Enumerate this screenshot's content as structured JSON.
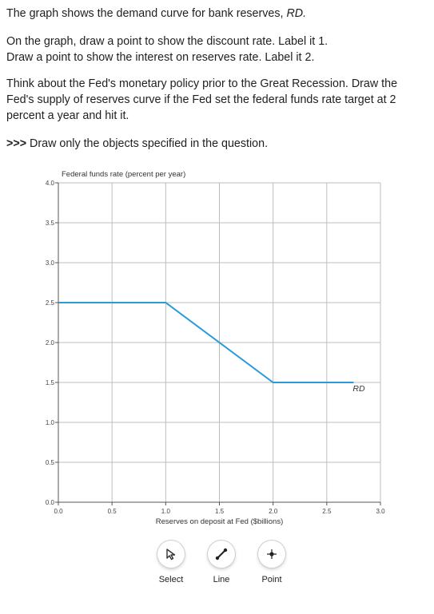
{
  "question": {
    "p1": {
      "text": "The graph shows the demand curve for bank reserves, ",
      "em": "RD."
    },
    "p2_line1": "On the graph, draw a point to show the discount rate. Label it 1.",
    "p2_line2": "Draw a point to show the interest on reserves rate. Label it 2.",
    "p3": "Think about the Fed's monetary policy prior to the Great Recession. Draw the Fed's supply of reserves curve if the Fed set the federal funds rate target at 2 percent a year and hit it.",
    "p4_prefix": ">>>",
    "p4_text": " Draw only the objects specified in the question."
  },
  "chart_data": {
    "type": "line",
    "ylabel": "Federal funds rate (percent per year)",
    "xlabel": "Reserves on deposit at Fed ($billions)",
    "xlim": [
      0,
      3.0
    ],
    "ylim": [
      0,
      4.0
    ],
    "x_ticks": [
      "0.0",
      "0.5",
      "1.0",
      "1.5",
      "2.0",
      "2.5",
      "3.0"
    ],
    "y_ticks": [
      "0.0",
      "0.5",
      "1.0",
      "1.5",
      "2.0",
      "2.5",
      "3.0",
      "3.5",
      "4.0"
    ],
    "grid": true,
    "series": [
      {
        "name": "RD",
        "color": "#2b9ad9",
        "points": [
          [
            0,
            2.5
          ],
          [
            1.0,
            2.5
          ],
          [
            2.0,
            1.5
          ],
          [
            2.75,
            1.5
          ]
        ]
      }
    ]
  },
  "toolbar": {
    "select_label": "Select",
    "line_label": "Line",
    "point_label": "Point"
  }
}
